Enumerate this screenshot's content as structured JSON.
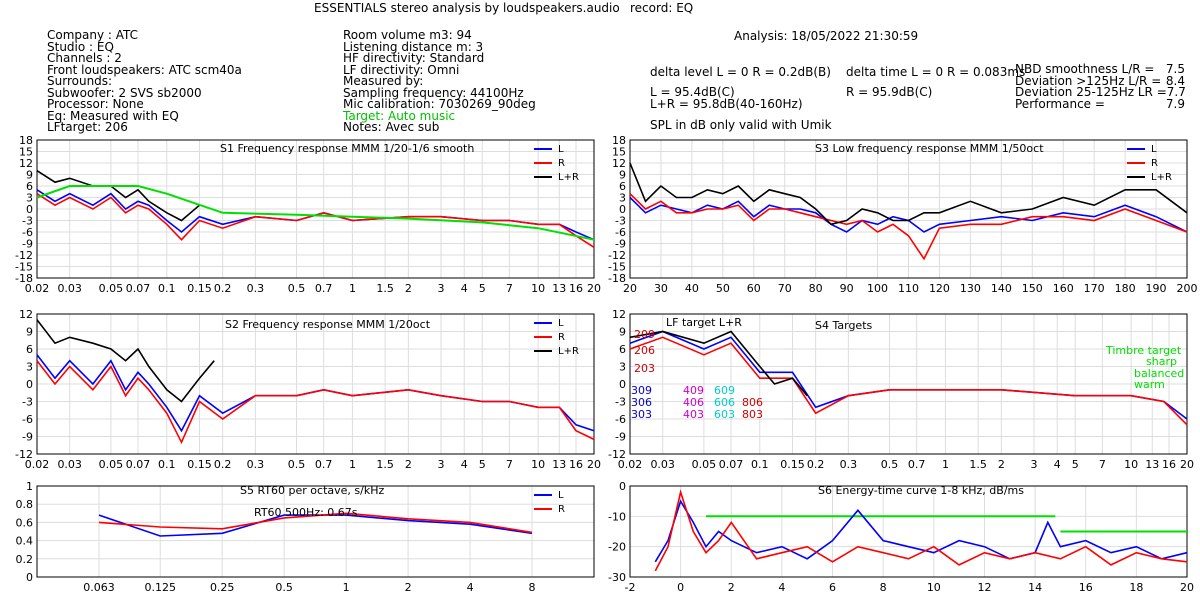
{
  "header": {
    "title": "ESSENTIALS stereo analysis by loudspeakers.audio",
    "record": "record: EQ",
    "analysis": "Analysis: 18/05/2022 21:30:59"
  },
  "info_left": [
    "Company : ATC",
    "Studio : EQ",
    "Channels : 2",
    "Front loudspeakers: ATC scm40a",
    "Surrounds:",
    "Subwoofer: 2 SVS sb2000",
    "Processor: None",
    "Eq: Measured with EQ",
    "LFtarget: 206"
  ],
  "info_mid": [
    "Room volume m3: 94",
    "Listening distance m: 3",
    "HF directivity: Standard",
    "LF directivity: Omni",
    "Measured by:",
    "Sampling frequency: 44100Hz",
    "Mic calibration: 7030269_90deg"
  ],
  "info_mid_target": "Target: Auto music",
  "info_mid_notes": "Notes: Avec sub",
  "stats": {
    "delta_level": "delta level L = 0  R = 0.2dB(B)",
    "delta_time": "delta time  L = 0  R = 0.083ms",
    "spl_l": "L =       95.4dB(C)",
    "spl_r": "R =       95.9dB(C)",
    "spl_lr": "L+R = 95.8dB(40-160Hz)",
    "spl_note": "SPL in dB only valid with Umik",
    "scores": [
      {
        "label": "NBD smoothness L/R =",
        "value": "7.5"
      },
      {
        "label": "Deviation >125Hz L/R =",
        "value": "8.4"
      },
      {
        "label": "Deviation 25-125Hz LR =",
        "value": "7.7"
      },
      {
        "label": "Performance =",
        "value": "7.9"
      }
    ]
  },
  "colors": {
    "L": "#0000ff",
    "R": "#ff0000",
    "LR": "#000000",
    "target": "#00e000",
    "grid": "#dddddd"
  },
  "chart_data": [
    {
      "id": "S1",
      "type": "line",
      "title": "S1  Frequency response MMM 1/20-1/6 smooth",
      "xscale": "log",
      "xlim": [
        0.02,
        20
      ],
      "ylim": [
        -18,
        18
      ],
      "xticks": [
        "0.02",
        "0.03",
        "0.05",
        "0.07",
        "0.1",
        "0.15",
        "0.2",
        "0.3",
        "0.5",
        "0.7",
        "1",
        "1.5",
        "2",
        "3",
        "4",
        "5",
        "7",
        "10",
        "13",
        "16",
        "20"
      ],
      "yticks": [
        "18",
        "15",
        "12",
        "9",
        "6",
        "3",
        "0",
        "-3",
        "-6",
        "-9",
        "-12",
        "-15",
        "-18"
      ],
      "legend": [
        "L",
        "R",
        "L+R"
      ],
      "series": [
        {
          "name": "L",
          "color": "#0000ff",
          "x": [
            0.02,
            0.025,
            0.03,
            0.04,
            0.05,
            0.06,
            0.07,
            0.08,
            0.1,
            0.12,
            0.15,
            0.2,
            0.3,
            0.5,
            0.7,
            1,
            2,
            3,
            5,
            7,
            10,
            13,
            16,
            20
          ],
          "y": [
            5,
            2,
            4,
            1,
            4,
            0,
            2,
            1,
            -3,
            -6,
            -2,
            -4,
            -2,
            -3,
            -1,
            -3,
            -2,
            -2,
            -3,
            -3,
            -4,
            -4,
            -6,
            -8
          ]
        },
        {
          "name": "R",
          "color": "#ff0000",
          "x": [
            0.02,
            0.025,
            0.03,
            0.04,
            0.05,
            0.06,
            0.07,
            0.08,
            0.1,
            0.12,
            0.15,
            0.2,
            0.3,
            0.5,
            0.7,
            1,
            2,
            3,
            5,
            7,
            10,
            13,
            16,
            20
          ],
          "y": [
            4,
            1,
            3,
            0,
            3,
            -1,
            1,
            0,
            -4,
            -8,
            -3,
            -5,
            -2,
            -3,
            -1,
            -3,
            -2,
            -2,
            -3,
            -3,
            -4,
            -4,
            -7,
            -10
          ]
        },
        {
          "name": "L+R",
          "color": "#000000",
          "x": [
            0.02,
            0.025,
            0.03,
            0.04,
            0.05,
            0.06,
            0.07,
            0.08,
            0.1,
            0.12,
            0.15
          ],
          "y": [
            10,
            7,
            8,
            6,
            6,
            3,
            5,
            2,
            -1,
            -3,
            1
          ]
        },
        {
          "name": "Target",
          "color": "#00e000",
          "x": [
            0.02,
            0.03,
            0.05,
            0.07,
            0.1,
            0.2,
            0.5,
            1,
            2,
            5,
            10,
            20
          ],
          "y": [
            3,
            6,
            6,
            6,
            4,
            -1,
            -1.5,
            -2,
            -2.5,
            -3.5,
            -5,
            -8
          ]
        }
      ]
    },
    {
      "id": "S2",
      "type": "line",
      "title": "S2  Frequency response MMM 1/20oct",
      "xscale": "log",
      "xlim": [
        0.02,
        20
      ],
      "ylim": [
        -12,
        12
      ],
      "xticks": [
        "0.02",
        "0.03",
        "0.05",
        "0.07",
        "0.1",
        "0.15",
        "0.2",
        "0.3",
        "0.5",
        "0.7",
        "1",
        "1.5",
        "2",
        "3",
        "4",
        "5",
        "7",
        "10",
        "13",
        "16",
        "20"
      ],
      "yticks": [
        "12",
        "9",
        "6",
        "3",
        "0",
        "-3",
        "-6",
        "-9",
        "-12"
      ],
      "legend": [
        "L",
        "R",
        "L+R"
      ],
      "series": [
        {
          "name": "L",
          "color": "#0000ff",
          "x": [
            0.02,
            0.025,
            0.03,
            0.04,
            0.05,
            0.06,
            0.07,
            0.08,
            0.1,
            0.12,
            0.15,
            0.2,
            0.3,
            0.5,
            0.7,
            1,
            2,
            3,
            5,
            7,
            10,
            13,
            16,
            20
          ],
          "y": [
            5,
            1,
            4,
            0,
            4,
            -1,
            2,
            0,
            -4,
            -8,
            -2,
            -5,
            -2,
            -2,
            -1,
            -2,
            -1,
            -2,
            -3,
            -3,
            -4,
            -4,
            -7,
            -8
          ]
        },
        {
          "name": "R",
          "color": "#ff0000",
          "x": [
            0.02,
            0.025,
            0.03,
            0.04,
            0.05,
            0.06,
            0.07,
            0.08,
            0.1,
            0.12,
            0.15,
            0.2,
            0.3,
            0.5,
            0.7,
            1,
            2,
            3,
            5,
            7,
            10,
            13,
            16,
            20
          ],
          "y": [
            4,
            0,
            3,
            -1,
            3,
            -2,
            1,
            -1,
            -5,
            -10,
            -3,
            -6,
            -2,
            -2,
            -1,
            -2,
            -1,
            -2,
            -3,
            -3,
            -4,
            -4,
            -8,
            -9.5
          ]
        },
        {
          "name": "L+R",
          "color": "#000000",
          "x": [
            0.02,
            0.025,
            0.03,
            0.04,
            0.05,
            0.06,
            0.07,
            0.08,
            0.1,
            0.12,
            0.15,
            0.18
          ],
          "y": [
            11,
            7,
            8,
            7,
            6,
            4,
            6,
            3,
            -1,
            -3,
            1,
            4
          ]
        }
      ]
    },
    {
      "id": "S3",
      "type": "line",
      "title": "S3  Low frequency response MMM 1/50oct",
      "xscale": "linear",
      "xlim": [
        20,
        200
      ],
      "ylim": [
        -18,
        18
      ],
      "xticks": [
        "20",
        "30",
        "40",
        "50",
        "60",
        "70",
        "80",
        "90",
        "100",
        "110",
        "120",
        "130",
        "140",
        "150",
        "160",
        "170",
        "180",
        "190",
        "200"
      ],
      "yticks": [
        "18",
        "15",
        "12",
        "9",
        "6",
        "3",
        "0",
        "-3",
        "-6",
        "-9",
        "-12",
        "-15",
        "-18"
      ],
      "legend": [
        "L",
        "R",
        "L+R"
      ],
      "series": [
        {
          "name": "L",
          "color": "#0000ff",
          "x": [
            20,
            25,
            30,
            35,
            40,
            45,
            50,
            55,
            60,
            65,
            70,
            75,
            80,
            85,
            90,
            95,
            100,
            105,
            110,
            115,
            120,
            130,
            140,
            150,
            160,
            170,
            180,
            190,
            200
          ],
          "y": [
            3,
            -1,
            1,
            0,
            -1,
            1,
            0,
            2,
            -2,
            1,
            0,
            0,
            -1,
            -4,
            -6,
            -3,
            -4,
            -2,
            -3,
            -6,
            -4,
            -3,
            -2,
            -3,
            -1,
            -2,
            1,
            -2,
            -6
          ]
        },
        {
          "name": "R",
          "color": "#ff0000",
          "x": [
            20,
            25,
            30,
            35,
            40,
            45,
            50,
            55,
            60,
            65,
            70,
            75,
            80,
            85,
            90,
            95,
            100,
            105,
            110,
            115,
            120,
            130,
            140,
            150,
            160,
            170,
            180,
            190,
            200
          ],
          "y": [
            4,
            0,
            2,
            -1,
            -1,
            0,
            0,
            1,
            -3,
            0,
            0,
            -1,
            -2,
            -3,
            -4,
            -3,
            -6,
            -4,
            -7,
            -13,
            -5,
            -4,
            -4,
            -2,
            -2,
            -3,
            0,
            -3,
            -6
          ]
        },
        {
          "name": "L+R",
          "color": "#000000",
          "x": [
            20,
            25,
            30,
            35,
            40,
            45,
            50,
            55,
            60,
            65,
            70,
            75,
            80,
            85,
            90,
            95,
            100,
            105,
            110,
            115,
            120,
            130,
            140,
            150,
            160,
            170,
            180,
            190,
            200
          ],
          "y": [
            12,
            2,
            6,
            3,
            3,
            5,
            4,
            6,
            2,
            5,
            4,
            3,
            0,
            -4,
            -3,
            0,
            -1,
            -3,
            -3,
            -1,
            -1,
            2,
            -1,
            0,
            3,
            1,
            5,
            5,
            -1
          ]
        }
      ]
    },
    {
      "id": "S4",
      "type": "line",
      "title": "S4 Targets",
      "subtitle": "LF target L+R",
      "xscale": "log",
      "xlim": [
        0.02,
        20
      ],
      "ylim": [
        -12,
        12
      ],
      "xticks": [
        "0.02",
        "0.03",
        "0.05",
        "0.07",
        "0.1",
        "0.15",
        "0.2",
        "0.3",
        "0.5",
        "0.7",
        "1",
        "1.5",
        "2",
        "3",
        "4",
        "5",
        "7",
        "10",
        "13",
        "16",
        "20"
      ],
      "yticks": [
        "12",
        "9",
        "6",
        "3",
        "0",
        "-3",
        "-6",
        "-9",
        "-12"
      ],
      "lf_labels": [
        "209",
        "206",
        "203",
        "309",
        "306",
        "303",
        "409",
        "406",
        "403",
        "609",
        "606",
        "603",
        "806",
        "803"
      ],
      "timbre_labels": [
        "Timbre target",
        "sharp",
        "balanced",
        "warm"
      ],
      "series": [
        {
          "name": "L",
          "color": "#0000ff",
          "x": [
            0.02,
            0.03,
            0.05,
            0.07,
            0.1,
            0.15,
            0.2,
            0.3,
            0.5,
            1,
            2,
            5,
            10,
            15,
            20
          ],
          "y": [
            7,
            9,
            6,
            8,
            2,
            2,
            -4,
            -2,
            -1,
            -1,
            -1,
            -2,
            -2,
            -3,
            -6
          ]
        },
        {
          "name": "R",
          "color": "#ff0000",
          "x": [
            0.02,
            0.03,
            0.05,
            0.07,
            0.1,
            0.15,
            0.2,
            0.3,
            0.5,
            1,
            2,
            5,
            10,
            15,
            20
          ],
          "y": [
            6,
            8,
            5,
            7,
            1,
            1,
            -5,
            -2,
            -1,
            -1,
            -1,
            -2,
            -2,
            -3,
            -7
          ]
        },
        {
          "name": "L+R",
          "color": "#000000",
          "x": [
            0.02,
            0.03,
            0.05,
            0.07,
            0.1,
            0.12,
            0.15,
            0.18
          ],
          "y": [
            8,
            9,
            7,
            9,
            3,
            0,
            1,
            -2
          ]
        }
      ]
    },
    {
      "id": "S5",
      "type": "line",
      "title": "S5  RT60 per octave, s/kHz",
      "xscale": "log",
      "xlim": [
        0.0315,
        16
      ],
      "ylim": [
        0,
        1
      ],
      "xticks": [
        "0.063",
        "0.125",
        "0.25",
        "0.5",
        "1",
        "2",
        "4",
        "8"
      ],
      "yticks": [
        "1",
        "0.8",
        "0.6",
        "0.4",
        "0.2",
        "0"
      ],
      "annotation": "RT60 500Hz: 0.67s",
      "legend": [
        "L",
        "R"
      ],
      "series": [
        {
          "name": "L",
          "color": "#0000ff",
          "x": [
            0.063,
            0.125,
            0.25,
            0.5,
            1,
            2,
            4,
            8
          ],
          "y": [
            0.68,
            0.45,
            0.48,
            0.68,
            0.68,
            0.62,
            0.58,
            0.48
          ]
        },
        {
          "name": "R",
          "color": "#ff0000",
          "x": [
            0.063,
            0.125,
            0.25,
            0.5,
            1,
            2,
            4,
            8
          ],
          "y": [
            0.6,
            0.55,
            0.53,
            0.65,
            0.7,
            0.64,
            0.6,
            0.49
          ]
        }
      ]
    },
    {
      "id": "S6",
      "type": "line",
      "title": "S6  Energy-time curve 1-8 kHz, dB/ms",
      "xscale": "linear",
      "xlim": [
        -2,
        20
      ],
      "ylim": [
        -30,
        0
      ],
      "xticks": [
        "-2",
        "0",
        "2",
        "4",
        "6",
        "8",
        "10",
        "12",
        "14",
        "16",
        "18",
        "20"
      ],
      "yticks": [
        "0",
        "-10",
        "-20",
        "-30"
      ],
      "series": [
        {
          "name": "target1",
          "color": "#00e000",
          "x": [
            1,
            14.8
          ],
          "y": [
            -10,
            -10
          ]
        },
        {
          "name": "target2",
          "color": "#00e000",
          "x": [
            15,
            20
          ],
          "y": [
            -15,
            -15
          ]
        },
        {
          "name": "L",
          "color": "#0000ff",
          "x": [
            -1,
            -0.5,
            0,
            0.5,
            1,
            1.5,
            2,
            3,
            4,
            5,
            6,
            7,
            8,
            9,
            10,
            11,
            12,
            13,
            14,
            14.5,
            15,
            16,
            17,
            18,
            19,
            20
          ],
          "y": [
            -25,
            -18,
            -5,
            -12,
            -20,
            -15,
            -18,
            -22,
            -20,
            -24,
            -18,
            -8,
            -18,
            -20,
            -22,
            -18,
            -20,
            -24,
            -22,
            -12,
            -20,
            -18,
            -22,
            -20,
            -24,
            -22
          ]
        },
        {
          "name": "R",
          "color": "#ff0000",
          "x": [
            -1,
            -0.5,
            0,
            0.5,
            1,
            1.5,
            2,
            3,
            4,
            5,
            6,
            7,
            8,
            9,
            10,
            11,
            12,
            13,
            14,
            15,
            16,
            17,
            18,
            19,
            20
          ],
          "y": [
            -28,
            -20,
            -2,
            -15,
            -22,
            -18,
            -12,
            -24,
            -22,
            -20,
            -25,
            -20,
            -22,
            -24,
            -20,
            -26,
            -22,
            -24,
            -22,
            -24,
            -20,
            -26,
            -22,
            -24,
            -25
          ]
        }
      ]
    }
  ]
}
